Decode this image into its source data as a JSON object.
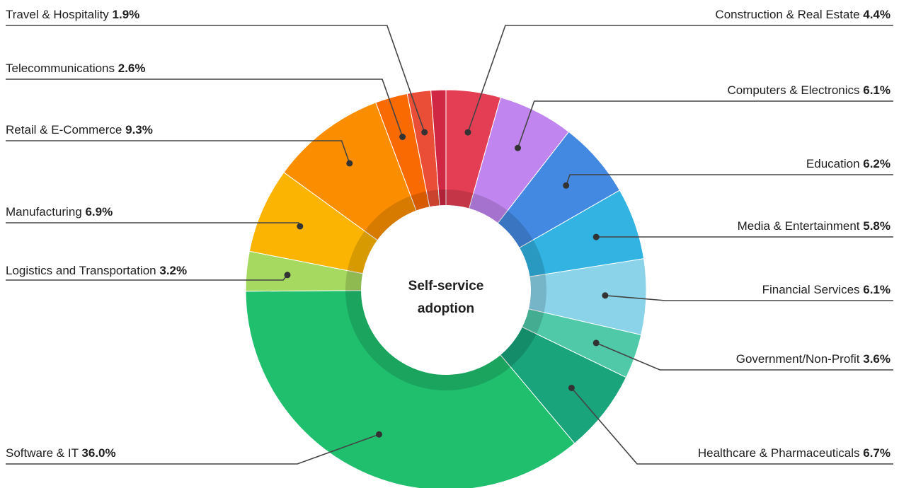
{
  "chart_data": {
    "type": "pie",
    "donut": true,
    "center_title": [
      "Self-service",
      "adoption"
    ],
    "slices": [
      {
        "label": "Construction & Real Estate",
        "value": 4.4,
        "value_label": "4.4%",
        "color": "#E33E53"
      },
      {
        "label": "Computers & Electronics",
        "value": 6.1,
        "value_label": "6.1%",
        "color": "#C185EF"
      },
      {
        "label": "Education",
        "value": 6.2,
        "value_label": "6.2%",
        "color": "#4489E1"
      },
      {
        "label": "Media & Entertainment",
        "value": 5.8,
        "value_label": "5.8%",
        "color": "#32B3E2"
      },
      {
        "label": "Financial Services",
        "value": 6.1,
        "value_label": "6.1%",
        "color": "#8AD3E8"
      },
      {
        "label": "Government/Non-Profit",
        "value": 3.6,
        "value_label": "3.6%",
        "color": "#50C9A9"
      },
      {
        "label": "Healthcare & Pharmaceuticals",
        "value": 6.7,
        "value_label": "6.7%",
        "color": "#19A47B"
      },
      {
        "label": "Software & IT",
        "value": 36.0,
        "value_label": "36.0%",
        "color": "#1FBF6E"
      },
      {
        "label": "Logistics and Transportation",
        "value": 3.2,
        "value_label": "3.2%",
        "color": "#A6D95F"
      },
      {
        "label": "Manufacturing",
        "value": 6.9,
        "value_label": "6.9%",
        "color": "#FBB401"
      },
      {
        "label": "Retail & E-Commerce",
        "value": 9.3,
        "value_label": "9.3%",
        "color": "#FA8E00"
      },
      {
        "label": "Telecommunications",
        "value": 2.6,
        "value_label": "2.6%",
        "color": "#FA6A02"
      },
      {
        "label": "Travel & Hospitality",
        "value": 1.9,
        "value_label": "1.9%",
        "color": "#EA4E36"
      },
      {
        "label": "",
        "value": 1.2,
        "value_label": "",
        "color": "#D02744"
      }
    ]
  }
}
